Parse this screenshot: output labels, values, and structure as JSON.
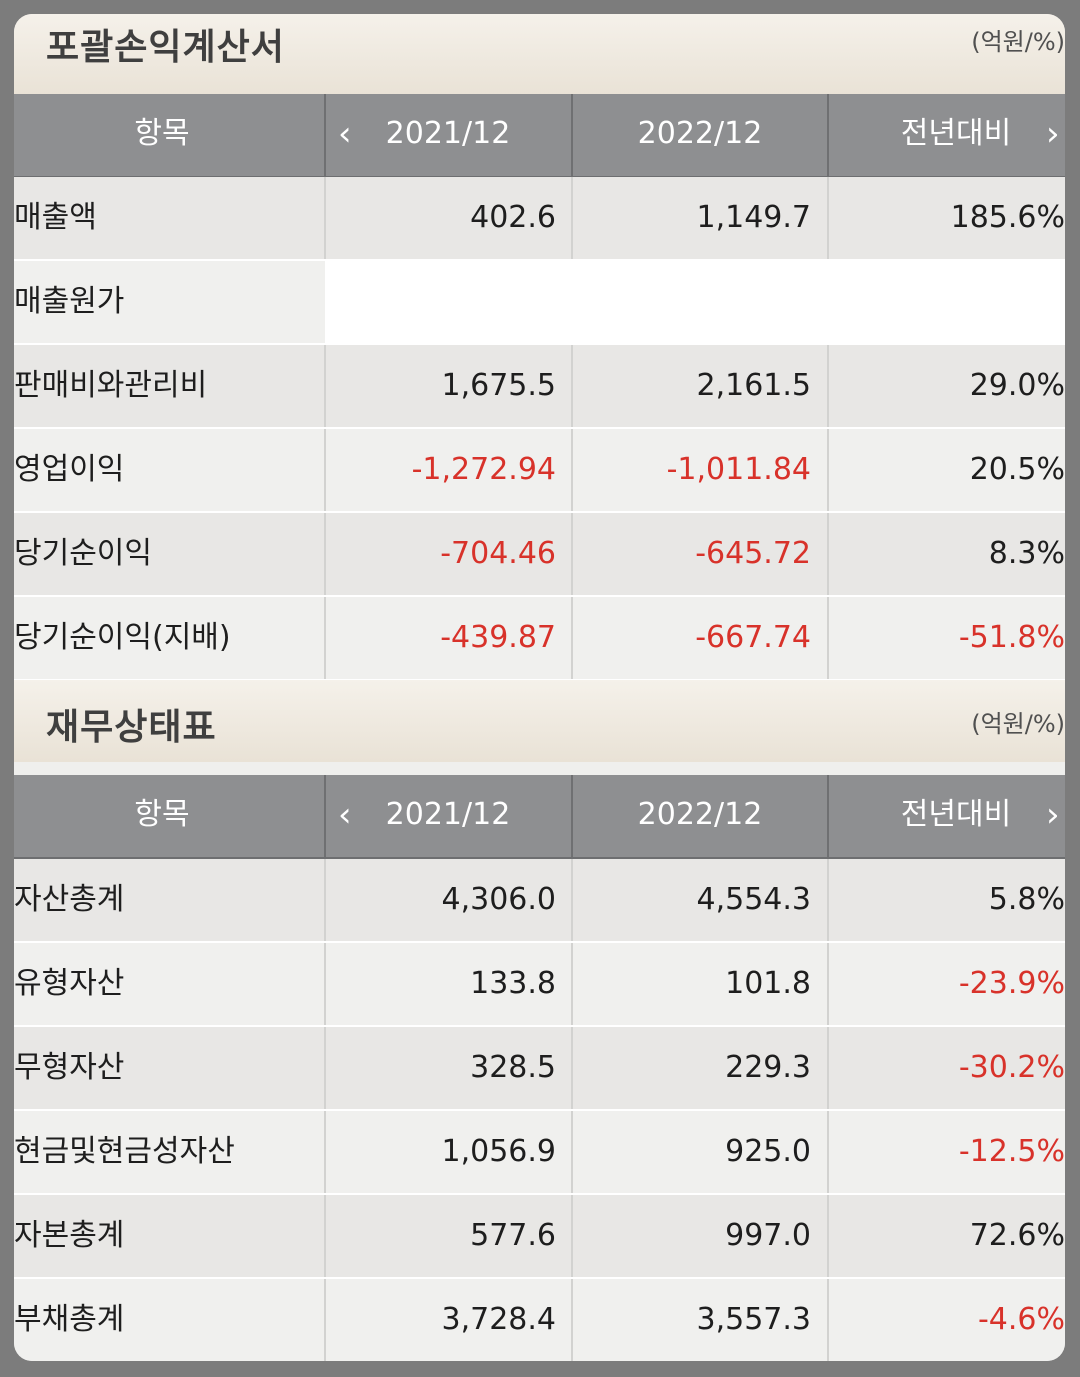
{
  "income": {
    "title": "포괄손익계산서",
    "unit": "(억원/%)",
    "headers": {
      "item": "항목",
      "col1": "2021/12",
      "col2": "2022/12",
      "col3": "전년대비",
      "prev_icon": "chevron-left-icon",
      "next_icon": "chevron-right-icon"
    },
    "rows": [
      {
        "label": "매출액",
        "v1": "402.6",
        "v2": "1,149.7",
        "v3": "185.6%"
      },
      {
        "label": "매출원가",
        "v1": "",
        "v2": "",
        "v3": ""
      },
      {
        "label": "판매비와관리비",
        "v1": "1,675.5",
        "v2": "2,161.5",
        "v3": "29.0%"
      },
      {
        "label": "영업이익",
        "v1": "-1,272.94",
        "v2": "-1,011.84",
        "v3": "20.5%"
      },
      {
        "label": "당기순이익",
        "v1": "-704.46",
        "v2": "-645.72",
        "v3": "8.3%"
      },
      {
        "label": "당기순이익(지배)",
        "v1": "-439.87",
        "v2": "-667.74",
        "v3": "-51.8%"
      }
    ]
  },
  "balance": {
    "title": "재무상태표",
    "unit": "(억원/%)",
    "headers": {
      "item": "항목",
      "col1": "2021/12",
      "col2": "2022/12",
      "col3": "전년대비",
      "prev_icon": "chevron-left-icon",
      "next_icon": "chevron-right-icon"
    },
    "rows": [
      {
        "label": "자산총계",
        "v1": "4,306.0",
        "v2": "4,554.3",
        "v3": "5.8%"
      },
      {
        "label": "유형자산",
        "v1": "133.8",
        "v2": "101.8",
        "v3": "-23.9%"
      },
      {
        "label": "무형자산",
        "v1": "328.5",
        "v2": "229.3",
        "v3": "-30.2%"
      },
      {
        "label": "현금및현금성자산",
        "v1": "1,056.9",
        "v2": "925.0",
        "v3": "-12.5%"
      },
      {
        "label": "자본총계",
        "v1": "577.6",
        "v2": "997.0",
        "v3": "72.6%"
      },
      {
        "label": "부채총계",
        "v1": "3,728.4",
        "v2": "3,557.3",
        "v3": "-4.6%"
      }
    ]
  },
  "colors": {
    "negative": "#d8322a",
    "header_bg": "#8e8f91",
    "section_bg": "#ece6dc"
  }
}
